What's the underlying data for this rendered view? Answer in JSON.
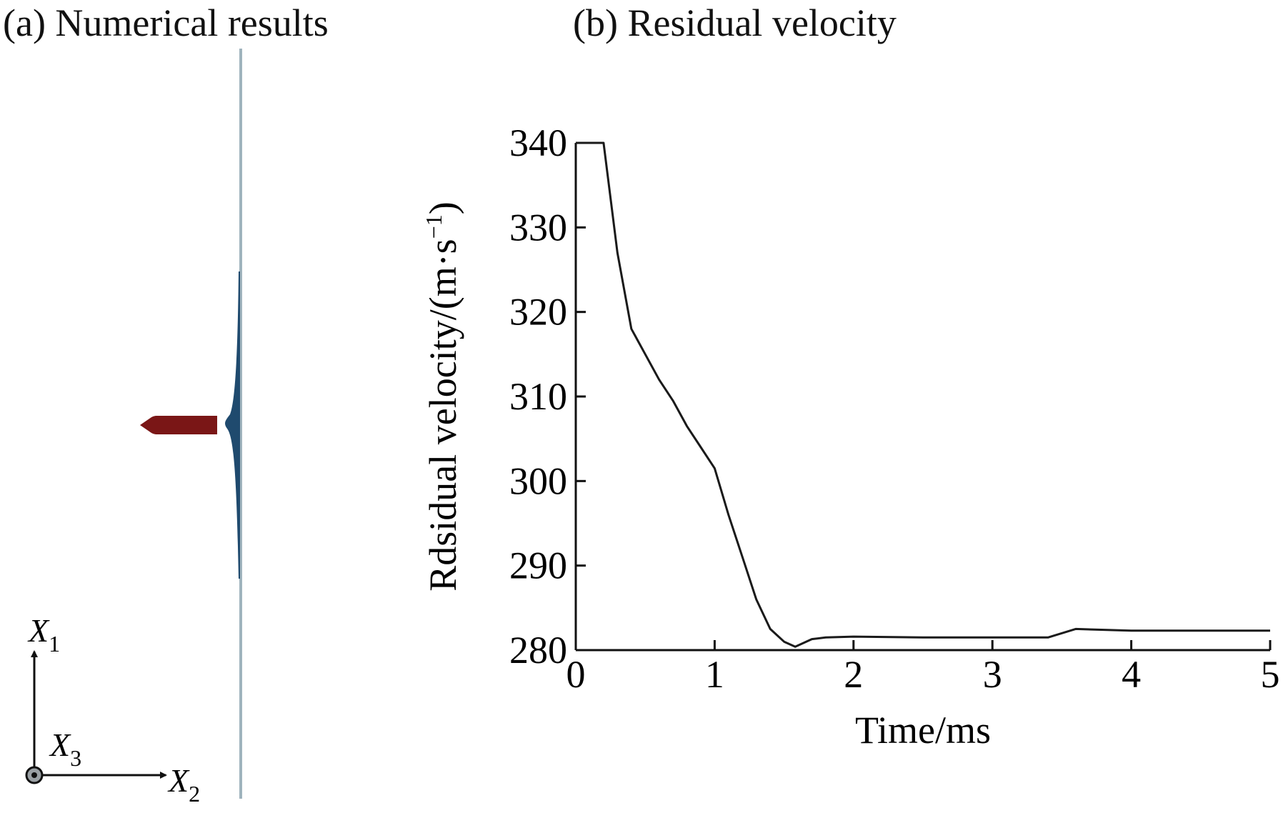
{
  "panels": {
    "a": {
      "title": "(a) Numerical results",
      "axes": {
        "x1": {
          "base": "X",
          "sub": "1"
        },
        "x2": {
          "base": "X",
          "sub": "2"
        },
        "x3": {
          "base": "X",
          "sub": "3"
        }
      }
    },
    "b": {
      "title": "(b) Residual velocity"
    }
  },
  "colors": {
    "projectile": "#7a1616",
    "plate": "#9fb3bd",
    "deformation": "#1f4a6e",
    "line": "#1a1a1a"
  },
  "chart_data": {
    "type": "line",
    "title": "(b) Residual velocity",
    "xlabel": "Time/ms",
    "ylabel": "Rdsidual velocity/(m·s",
    "ylabel_superscript": "−1",
    "ylabel_close": ")",
    "xlim": [
      0,
      5
    ],
    "ylim": [
      280,
      340
    ],
    "x_ticks": [
      0,
      1,
      2,
      3,
      4,
      5
    ],
    "y_ticks": [
      280,
      290,
      300,
      310,
      320,
      330,
      340
    ],
    "grid": false,
    "series": [
      {
        "x": [
          0,
          0.2,
          0.3,
          0.4,
          0.5,
          0.6,
          0.7,
          0.8,
          0.9,
          1.0,
          1.1,
          1.2,
          1.3,
          1.4,
          1.5,
          1.58,
          1.7,
          1.8,
          2.0,
          2.5,
          3.0,
          3.4,
          3.6,
          4.0,
          5.0
        ],
        "y": [
          340,
          340,
          327,
          318,
          315,
          312,
          309.5,
          306.5,
          304,
          301.5,
          296,
          291,
          286,
          282.5,
          281,
          280.4,
          281.3,
          281.5,
          281.6,
          281.5,
          281.5,
          281.5,
          282.5,
          282.3,
          282.3
        ]
      }
    ]
  }
}
